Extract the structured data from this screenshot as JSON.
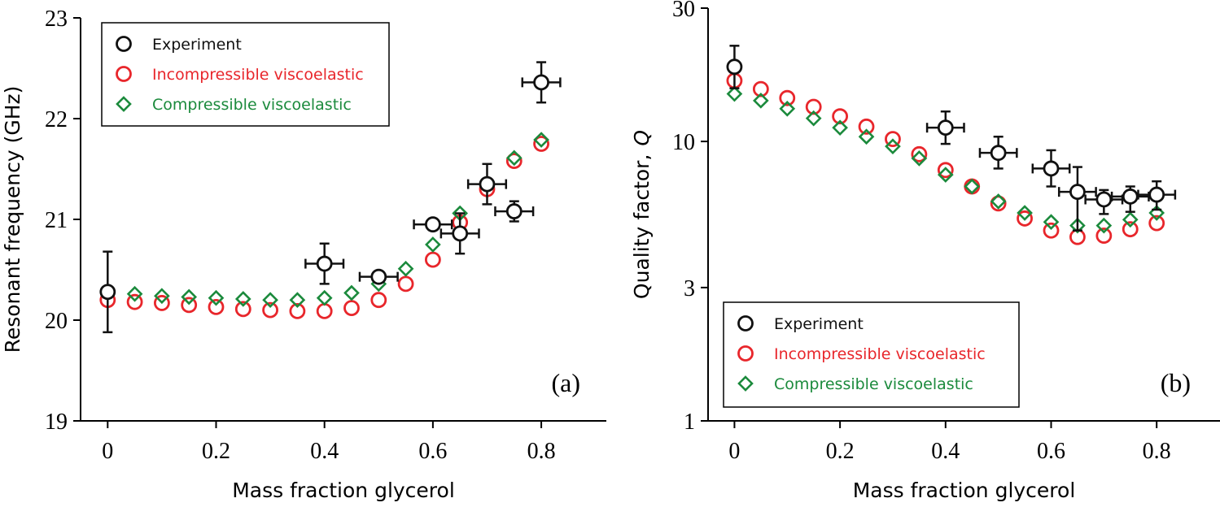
{
  "colors": {
    "experiment": "#111111",
    "incompressible": "#e8262b",
    "compressible": "#1b8a3c"
  },
  "chart_data": [
    {
      "type": "scatter",
      "panel_label": "(a)",
      "xlabel": "Mass fraction glycerol",
      "ylabel": "Resonant frequency (GHz)",
      "xlim": [
        -0.05,
        0.92
      ],
      "ylim": [
        19,
        23
      ],
      "yscale": "linear",
      "x_ticks": [
        0,
        0.2,
        0.4,
        0.6,
        0.8
      ],
      "x_tick_labels": [
        "0",
        "0.2",
        "0.4",
        "0.6",
        "0.8"
      ],
      "y_ticks": [
        19,
        20,
        21,
        22,
        23
      ],
      "y_tick_labels": [
        "19",
        "20",
        "21",
        "22",
        "23"
      ],
      "legend": {
        "position": "top-left",
        "entries": [
          {
            "label": "Experiment",
            "series": "experiment"
          },
          {
            "label": "Incompressible viscoelastic",
            "series": "incompressible"
          },
          {
            "label": "Compressible viscoelastic",
            "series": "compressible"
          }
        ]
      },
      "series": {
        "experiment": {
          "name": "Experiment",
          "marker": "circle",
          "points": [
            {
              "x": 0.0,
              "y": 20.28,
              "xerr": 0.0,
              "yerr": 0.4
            },
            {
              "x": 0.4,
              "y": 20.56,
              "xerr": 0.035,
              "yerr": 0.2
            },
            {
              "x": 0.5,
              "y": 20.43,
              "xerr": 0.035,
              "yerr": 0.0
            },
            {
              "x": 0.6,
              "y": 20.95,
              "xerr": 0.035,
              "yerr": 0.0
            },
            {
              "x": 0.65,
              "y": 20.86,
              "xerr": 0.035,
              "yerr": 0.2
            },
            {
              "x": 0.7,
              "y": 21.35,
              "xerr": 0.035,
              "yerr": 0.2
            },
            {
              "x": 0.75,
              "y": 21.08,
              "xerr": 0.035,
              "yerr": 0.1
            },
            {
              "x": 0.8,
              "y": 22.36,
              "xerr": 0.035,
              "yerr": 0.2
            }
          ]
        },
        "incompressible": {
          "name": "Incompressible viscoelastic",
          "marker": "circle",
          "x": [
            0,
            0.05,
            0.1,
            0.15,
            0.2,
            0.25,
            0.3,
            0.35,
            0.4,
            0.45,
            0.5,
            0.55,
            0.6,
            0.65,
            0.7,
            0.75,
            0.8
          ],
          "y": [
            20.2,
            20.18,
            20.17,
            20.15,
            20.13,
            20.11,
            20.1,
            20.09,
            20.09,
            20.12,
            20.2,
            20.36,
            20.6,
            20.97,
            21.3,
            21.58,
            21.75
          ]
        },
        "compressible": {
          "name": "Compressible viscoelastic",
          "marker": "diamond",
          "x": [
            0.05,
            0.1,
            0.15,
            0.2,
            0.25,
            0.3,
            0.35,
            0.4,
            0.45,
            0.5,
            0.55,
            0.6,
            0.65,
            0.7,
            0.75,
            0.8
          ],
          "y": [
            20.26,
            20.24,
            20.23,
            20.22,
            20.21,
            20.2,
            20.2,
            20.22,
            20.27,
            20.36,
            20.51,
            20.75,
            21.06,
            21.35,
            21.61,
            21.79
          ]
        }
      }
    },
    {
      "type": "scatter",
      "panel_label": "(b)",
      "xlabel": "Mass fraction glycerol",
      "ylabel": "Quality factor,",
      "ylabel_symbol": "Q",
      "xlim": [
        -0.05,
        0.92
      ],
      "ylim": [
        1,
        30
      ],
      "yscale": "log",
      "x_ticks": [
        0,
        0.2,
        0.4,
        0.6,
        0.8
      ],
      "x_tick_labels": [
        "0",
        "0.2",
        "0.4",
        "0.6",
        "0.8"
      ],
      "y_ticks": [
        1,
        3,
        10,
        30
      ],
      "y_tick_labels": [
        "1",
        "3",
        "10",
        "30"
      ],
      "legend": {
        "position": "bottom-left",
        "entries": [
          {
            "label": "Experiment",
            "series": "experiment"
          },
          {
            "label": "Incompressible viscoelastic",
            "series": "incompressible"
          },
          {
            "label": "Compressible viscoelastic",
            "series": "compressible"
          }
        ]
      },
      "series": {
        "experiment": {
          "name": "Experiment",
          "marker": "circle",
          "points": [
            {
              "x": 0.0,
              "y": 18.5,
              "ylo": 15.5,
              "yhi": 22.0,
              "xerr": 0.0
            },
            {
              "x": 0.4,
              "y": 11.2,
              "ylo": 9.8,
              "yhi": 12.8,
              "xerr": 0.035
            },
            {
              "x": 0.5,
              "y": 9.1,
              "ylo": 8.0,
              "yhi": 10.4,
              "xerr": 0.035
            },
            {
              "x": 0.6,
              "y": 8.0,
              "ylo": 6.9,
              "yhi": 9.3,
              "xerr": 0.035
            },
            {
              "x": 0.65,
              "y": 6.6,
              "ylo": 4.8,
              "yhi": 8.1,
              "xerr": 0.035
            },
            {
              "x": 0.7,
              "y": 6.2,
              "ylo": 5.5,
              "yhi": 6.7,
              "xerr": 0.035
            },
            {
              "x": 0.75,
              "y": 6.35,
              "ylo": 5.6,
              "yhi": 6.9,
              "xerr": 0.035
            },
            {
              "x": 0.8,
              "y": 6.45,
              "ylo": 5.7,
              "yhi": 7.2,
              "xerr": 0.035
            }
          ]
        },
        "incompressible": {
          "name": "Incompressible viscoelastic",
          "marker": "circle",
          "x": [
            0,
            0.05,
            0.1,
            0.15,
            0.2,
            0.25,
            0.3,
            0.35,
            0.4,
            0.45,
            0.5,
            0.55,
            0.6,
            0.65,
            0.7,
            0.75,
            0.8
          ],
          "y": [
            16.5,
            15.4,
            14.3,
            13.3,
            12.3,
            11.3,
            10.2,
            9.0,
            7.9,
            6.9,
            6.0,
            5.3,
            4.8,
            4.55,
            4.6,
            4.85,
            5.1
          ]
        },
        "compressible": {
          "name": "Compressible viscoelastic",
          "marker": "diamond",
          "x": [
            0,
            0.05,
            0.1,
            0.15,
            0.2,
            0.25,
            0.3,
            0.35,
            0.4,
            0.45,
            0.5,
            0.55,
            0.6,
            0.65,
            0.7,
            0.75,
            0.8
          ],
          "y": [
            14.8,
            14.0,
            13.1,
            12.1,
            11.2,
            10.4,
            9.6,
            8.7,
            7.6,
            6.9,
            6.1,
            5.55,
            5.15,
            5.0,
            5.0,
            5.25,
            5.55
          ]
        }
      }
    }
  ]
}
